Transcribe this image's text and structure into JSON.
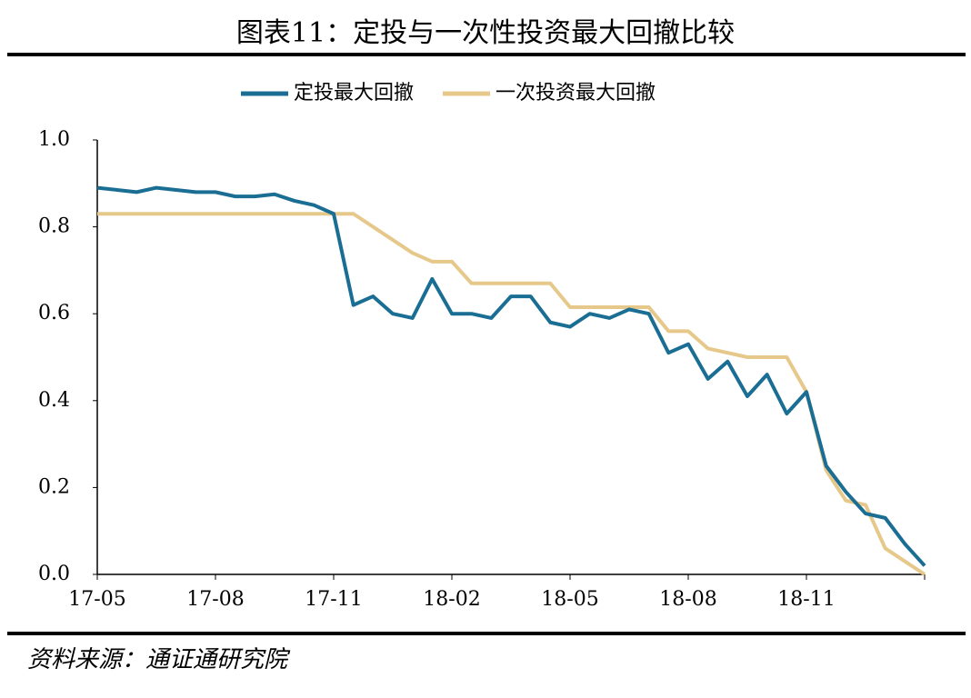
{
  "chart_data": {
    "type": "line",
    "title": "图表11：定投与一次性投资最大回撤比较",
    "source": "资料来源：通证通研究院",
    "categories": [
      "17-05",
      null,
      null,
      null,
      null,
      null,
      "17-08",
      null,
      null,
      null,
      null,
      null,
      "17-11",
      null,
      null,
      null,
      null,
      null,
      "18-02",
      null,
      null,
      null,
      null,
      null,
      "18-05",
      null,
      null,
      null,
      null,
      null,
      "18-08",
      null,
      null,
      null,
      null,
      null,
      "18-11",
      null,
      null,
      null,
      null,
      null,
      null
    ],
    "series": [
      {
        "name": "定投最大回撤",
        "color": "#1a6e94",
        "values": [
          0.89,
          0.885,
          0.88,
          0.89,
          0.885,
          0.88,
          0.88,
          0.87,
          0.87,
          0.875,
          0.86,
          0.85,
          0.83,
          0.62,
          0.64,
          0.6,
          0.59,
          0.68,
          0.6,
          0.6,
          0.59,
          0.64,
          0.64,
          0.58,
          0.57,
          0.6,
          0.59,
          0.61,
          0.6,
          0.51,
          0.53,
          0.45,
          0.49,
          0.41,
          0.46,
          0.37,
          0.42,
          0.25,
          0.19,
          0.14,
          0.13,
          0.07,
          0.02
        ]
      },
      {
        "name": "一次投资最大回撤",
        "color": "#e6c88a",
        "values": [
          0.83,
          0.83,
          0.83,
          0.83,
          0.83,
          0.83,
          0.83,
          0.83,
          0.83,
          0.83,
          0.83,
          0.83,
          0.83,
          0.83,
          0.8,
          0.77,
          0.74,
          0.72,
          0.72,
          0.67,
          0.67,
          0.67,
          0.67,
          0.67,
          0.615,
          0.615,
          0.615,
          0.615,
          0.615,
          0.56,
          0.56,
          0.52,
          0.51,
          0.5,
          0.5,
          0.5,
          0.42,
          0.24,
          0.17,
          0.16,
          0.06,
          0.03,
          0.0
        ]
      }
    ],
    "ylim": [
      0,
      1
    ],
    "yticks": [
      {
        "value": 0,
        "label": "0.0"
      },
      0.2,
      0.4,
      0.6,
      0.8,
      {
        "value": 1,
        "label": "1.0"
      }
    ],
    "grid": false
  }
}
